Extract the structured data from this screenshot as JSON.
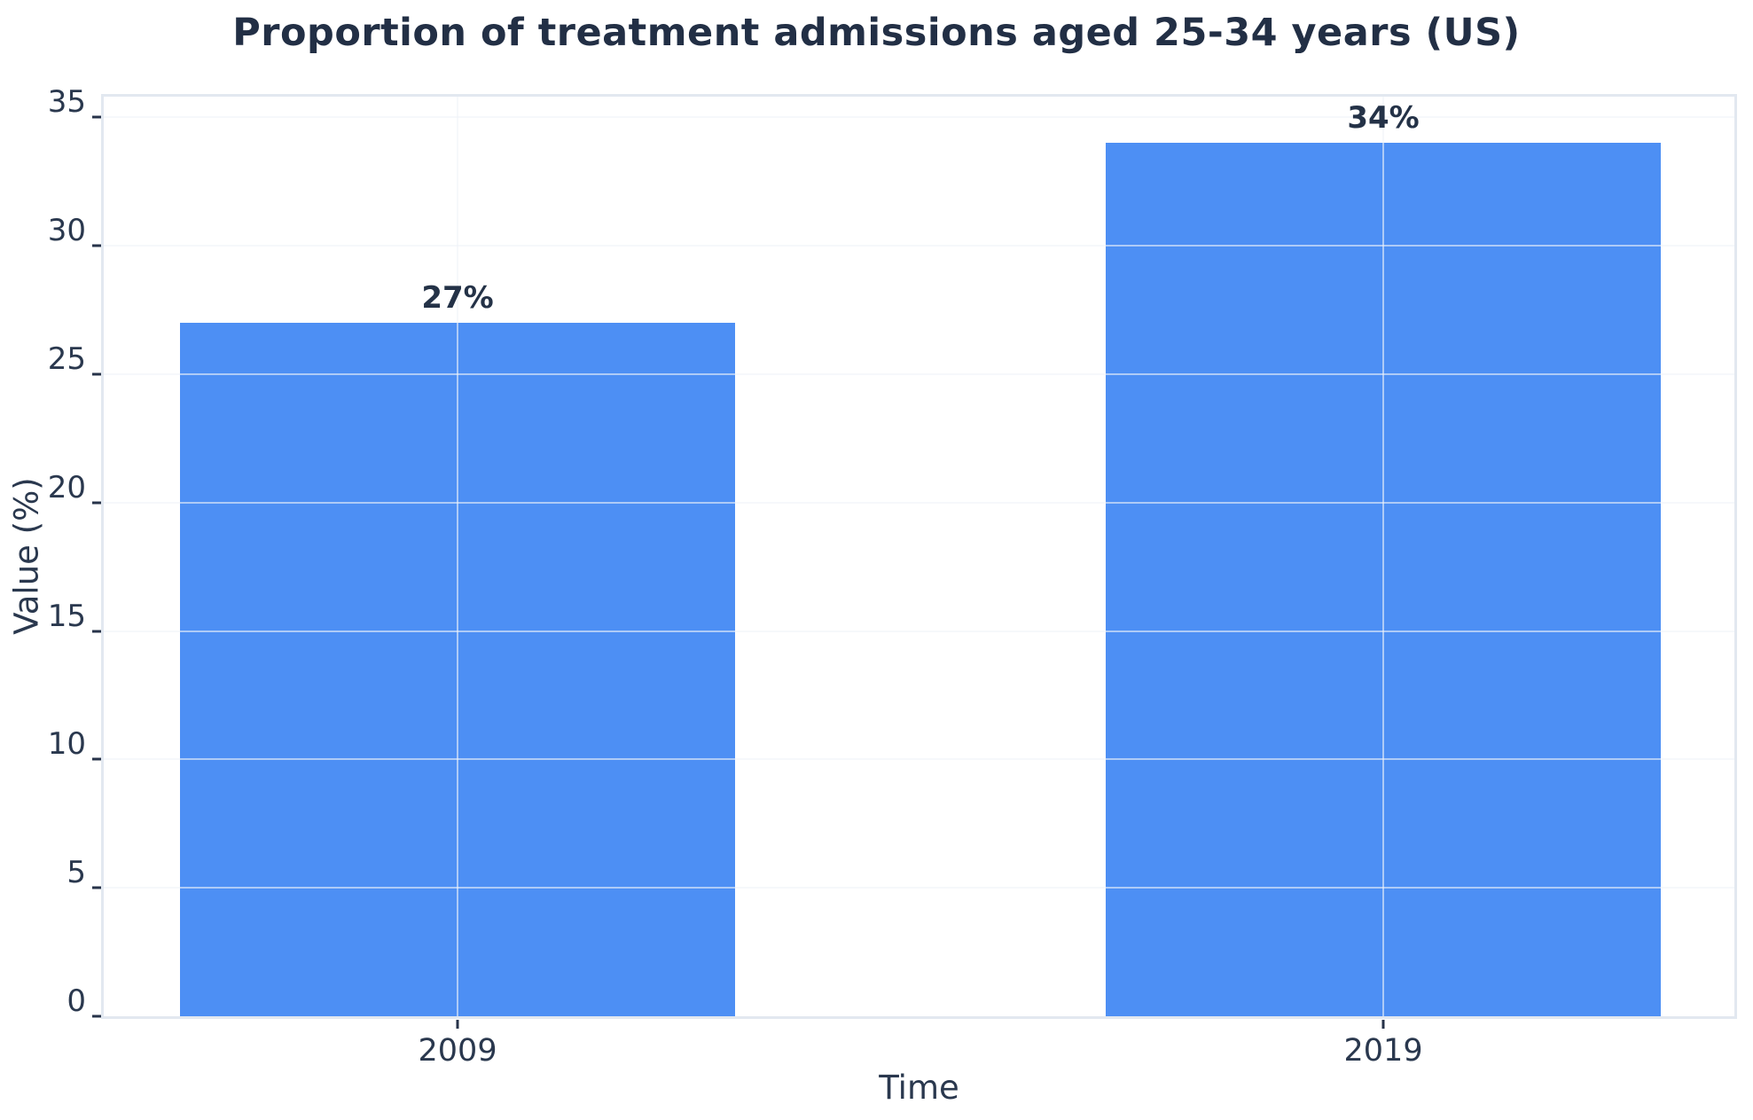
{
  "title": "Proportion of treatment admissions aged 25-34 years (US)",
  "chart_data": {
    "type": "bar",
    "title": "Proportion of treatment admissions aged 25-34 years (US)",
    "categories": [
      "2009",
      "2019"
    ],
    "values": [
      27,
      34
    ],
    "bar_labels": [
      "27%",
      "34%"
    ],
    "xlabel": "Time",
    "ylabel": "Value (%)",
    "yticks": [
      0,
      5,
      10,
      15,
      20,
      25,
      30,
      35
    ],
    "ylim": [
      0,
      35.8
    ],
    "grid": "on",
    "legend_position": "none",
    "bar_color": "#4d8ff4",
    "grid_color": "rgba(240,244,249,0.6)",
    "spine_color": "#e2e8f0",
    "tick_color": "#27334a",
    "text_color": "#2a384e",
    "title_color": "#222f45",
    "background_color": "#ffffff"
  }
}
